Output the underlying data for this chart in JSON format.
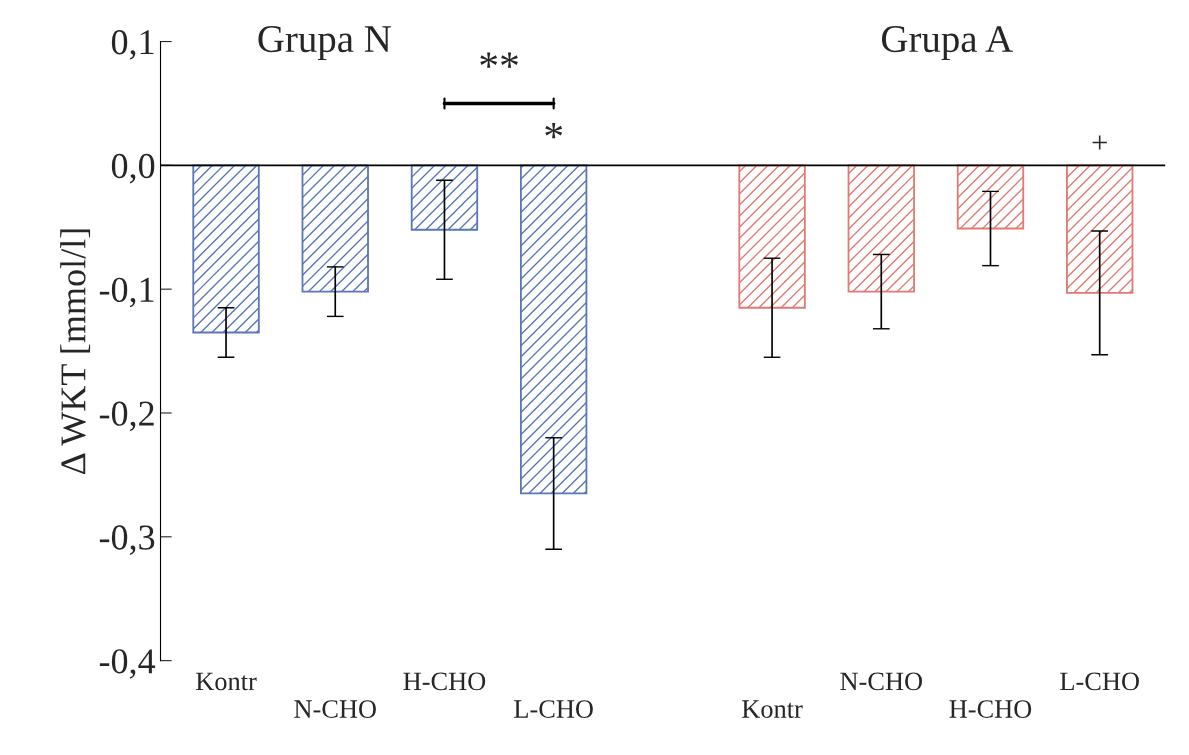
{
  "chart_data": {
    "type": "bar",
    "categories": [
      "Kontr",
      "N-CHO",
      "H-CHO",
      "L-CHO",
      null,
      "Kontr",
      "N-CHO",
      "H-CHO",
      "L-CHO"
    ],
    "values": [
      -0.135,
      -0.102,
      -0.052,
      -0.265,
      null,
      -0.115,
      -0.102,
      -0.051,
      -0.103
    ],
    "errors": [
      0.02,
      0.02,
      0.04,
      0.045,
      null,
      0.04,
      0.03,
      0.03,
      0.05
    ],
    "colors": [
      "#5a76b8",
      "#5a76b8",
      "#5a76b8",
      "#5a76b8",
      "#ffffff",
      "#e07a72",
      "#e07a72",
      "#e07a72",
      "#e07a72"
    ],
    "ylabel": "Δ WKT [mmol/l]",
    "ylim": [
      -0.4,
      0.1
    ],
    "yticks": [
      {
        "value": -0.4,
        "label": "-0,4"
      },
      {
        "value": -0.3,
        "label": "-0,3"
      },
      {
        "value": -0.2,
        "label": "-0,2"
      },
      {
        "value": -0.1,
        "label": "-0,1"
      },
      {
        "value": 0,
        "label": "0,0"
      },
      {
        "value": 0.1,
        "label": "0,1"
      }
    ],
    "ref_lines": [
      {
        "axis": "y",
        "value": 0,
        "color": "#000000"
      }
    ],
    "annotations": [
      "Grupa N",
      "Grupa A",
      "**",
      "*",
      "+"
    ],
    "grid": false,
    "legend": false
  }
}
